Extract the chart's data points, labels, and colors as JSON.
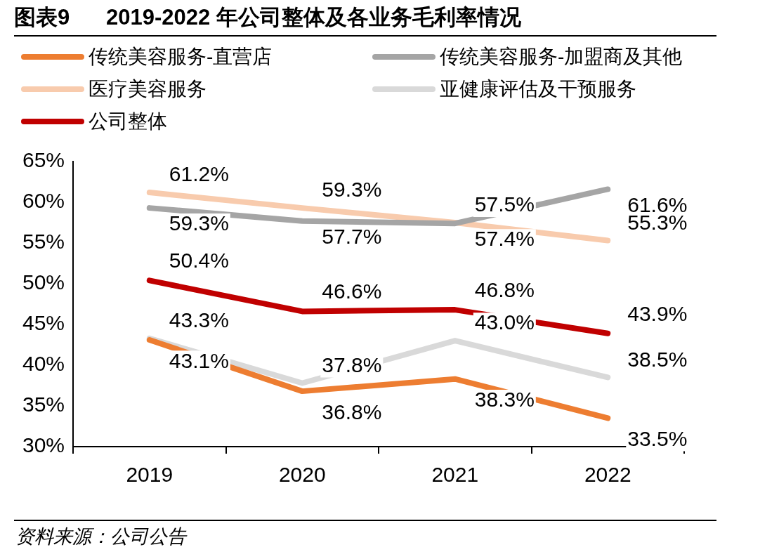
{
  "chart_data": {
    "type": "line",
    "title": "图表9      2019-2022 年公司整体及各业务毛利率情况",
    "categories": [
      "2019",
      "2020",
      "2021",
      "2022"
    ],
    "series": [
      {
        "name": "传统美容服务-直营店",
        "color": "#ed7d31",
        "values": [
          43.1,
          36.8,
          38.3,
          33.5
        ],
        "value_labels": [
          "43.1%",
          "36.8%",
          "38.3%",
          "33.5%"
        ]
      },
      {
        "name": "传统美容服务-加盟商及其他",
        "color": "#a5a5a5",
        "values": [
          59.3,
          57.7,
          57.4,
          61.6
        ],
        "value_labels": [
          "59.3%",
          "57.7%",
          "57.4%",
          "61.6%"
        ]
      },
      {
        "name": "医疗美容服务",
        "color": "#f8cbad",
        "values": [
          61.2,
          59.3,
          57.5,
          55.3
        ],
        "value_labels": [
          "61.2%",
          "59.3%",
          "57.5%",
          "55.3%"
        ]
      },
      {
        "name": "亚健康评估及干预服务",
        "color": "#d9d9d9",
        "values": [
          43.3,
          37.8,
          43.0,
          38.5
        ],
        "value_labels": [
          "43.3%",
          "37.8%",
          "43.0%",
          "38.5%"
        ]
      },
      {
        "name": "公司整体",
        "color": "#c00000",
        "values": [
          50.4,
          46.6,
          46.8,
          43.9
        ],
        "value_labels": [
          "50.4%",
          "46.6%",
          "46.8%",
          "43.9%"
        ]
      }
    ],
    "ylim": [
      30,
      65
    ],
    "yticks": [
      {
        "value": 30,
        "label": "30%"
      },
      {
        "value": 35,
        "label": "35%"
      },
      {
        "value": 40,
        "label": "40%"
      },
      {
        "value": 45,
        "label": "45%"
      },
      {
        "value": 50,
        "label": "50%"
      },
      {
        "value": 55,
        "label": "55%"
      },
      {
        "value": 60,
        "label": "60%"
      },
      {
        "value": 65,
        "label": "65%"
      }
    ],
    "grid": false,
    "legend": "top",
    "marker": "none",
    "line_style": "solid",
    "annotations": [
      "资料来源：公司公告"
    ]
  }
}
